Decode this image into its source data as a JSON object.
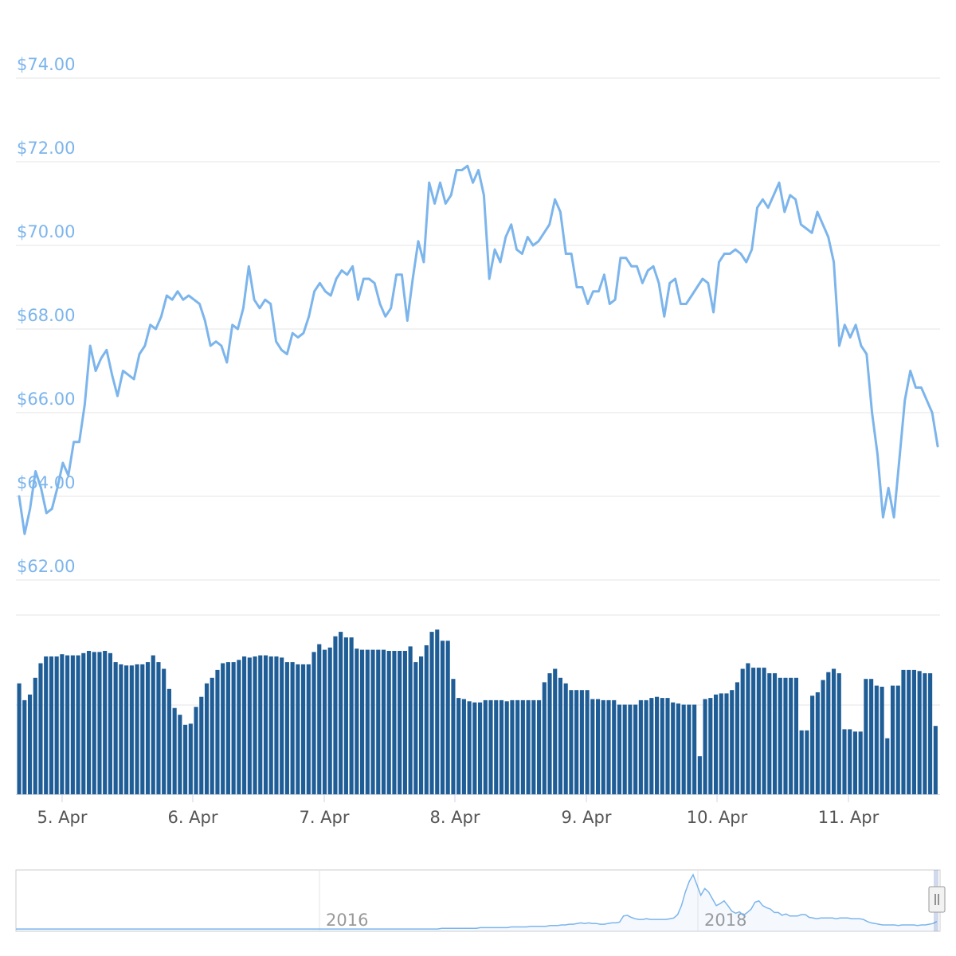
{
  "chart_data": {
    "type": "line",
    "price": {
      "y_ticks": [
        "$62.00",
        "$64.00",
        "$66.00",
        "$68.00",
        "$70.00",
        "$72.00",
        "$74.00"
      ],
      "y_tick_values": [
        62,
        64,
        66,
        68,
        70,
        72,
        74
      ],
      "ylim": [
        61.2,
        74.2
      ],
      "color": "#7cb5ec",
      "values": [
        64.0,
        63.1,
        63.7,
        64.6,
        64.2,
        63.6,
        63.7,
        64.2,
        64.8,
        64.5,
        65.3,
        65.3,
        66.2,
        67.6,
        67.0,
        67.3,
        67.5,
        66.9,
        66.4,
        67.0,
        66.9,
        66.8,
        67.4,
        67.6,
        68.1,
        68.0,
        68.3,
        68.8,
        68.7,
        68.9,
        68.7,
        68.8,
        68.7,
        68.6,
        68.2,
        67.6,
        67.7,
        67.6,
        67.2,
        68.1,
        68.0,
        68.5,
        69.5,
        68.7,
        68.5,
        68.7,
        68.6,
        67.7,
        67.5,
        67.4,
        67.9,
        67.8,
        67.9,
        68.3,
        68.9,
        69.1,
        68.9,
        68.8,
        69.2,
        69.4,
        69.3,
        69.5,
        68.7,
        69.2,
        69.2,
        69.1,
        68.6,
        68.3,
        68.5,
        69.3,
        69.3,
        68.2,
        69.2,
        70.1,
        69.6,
        71.5,
        71.0,
        71.5,
        71.0,
        71.2,
        71.8,
        71.8,
        71.9,
        71.5,
        71.8,
        71.2,
        69.2,
        69.9,
        69.6,
        70.2,
        70.5,
        69.9,
        69.8,
        70.2,
        70.0,
        70.1,
        70.3,
        70.5,
        71.1,
        70.8,
        69.8,
        69.8,
        69.0,
        69.0,
        68.6,
        68.9,
        68.9,
        69.3,
        68.6,
        68.7,
        69.7,
        69.7,
        69.5,
        69.5,
        69.1,
        69.4,
        69.5,
        69.1,
        68.3,
        69.1,
        69.2,
        68.6,
        68.6,
        68.8,
        69.0,
        69.2,
        69.1,
        68.4,
        69.6,
        69.8,
        69.8,
        69.9,
        69.8,
        69.6,
        69.9,
        70.9,
        71.1,
        70.9,
        71.2,
        71.5,
        70.8,
        71.2,
        71.1,
        70.5,
        70.4,
        70.3,
        70.8,
        70.5,
        70.2,
        69.6,
        67.6,
        68.1,
        67.8,
        68.1,
        67.6,
        67.4,
        66.0,
        65.0,
        63.5,
        64.2,
        63.5,
        64.9,
        66.3,
        67.0,
        66.6,
        66.6,
        66.3,
        66.0,
        65.2
      ]
    },
    "volume": {
      "color": "#1f5d96",
      "ylim": [
        0,
        160
      ],
      "values": [
        99,
        84,
        89,
        104,
        117,
        123,
        123,
        123,
        125,
        124,
        124,
        124,
        126,
        128,
        127,
        127,
        128,
        126,
        118,
        116,
        115,
        115,
        116,
        116,
        118,
        124,
        118,
        112,
        94,
        77,
        71,
        62,
        63,
        78,
        87,
        99,
        104,
        111,
        117,
        118,
        118,
        120,
        123,
        122,
        123,
        124,
        124,
        123,
        123,
        122,
        118,
        118,
        116,
        116,
        116,
        127,
        134,
        129,
        131,
        141,
        145,
        140,
        140,
        130,
        129,
        129,
        129,
        129,
        129,
        128,
        128,
        128,
        128,
        132,
        118,
        123,
        133,
        145,
        147,
        137,
        137,
        103,
        86,
        85,
        83,
        82,
        82,
        84,
        84,
        84,
        84,
        83,
        84,
        84,
        84,
        84,
        84,
        84,
        100,
        108,
        112,
        104,
        99,
        93,
        93,
        93,
        93,
        85,
        85,
        84,
        84,
        84,
        80,
        80,
        80,
        80,
        84,
        84,
        86,
        87,
        86,
        86,
        82,
        81,
        80,
        80,
        80,
        34,
        85,
        86,
        89,
        90,
        90,
        93,
        100,
        112,
        117,
        113,
        113,
        113,
        108,
        108,
        104,
        104,
        104,
        104,
        57,
        57,
        88,
        91,
        102,
        109,
        112,
        108,
        58,
        58,
        56,
        56,
        103,
        103,
        97,
        96,
        50,
        97,
        97,
        111,
        111,
        111,
        110,
        108,
        108,
        61
      ]
    },
    "x_ticks": [
      "5. Apr",
      "6. Apr",
      "7. Apr",
      "8. Apr",
      "9. Apr",
      "10. Apr",
      "11. Apr"
    ],
    "navigator": {
      "labels": [
        "2016",
        "2018"
      ],
      "series_color": "#7cb5ec",
      "values": [
        0.01,
        0.01,
        0.01,
        0.01,
        0.01,
        0.01,
        0.01,
        0.01,
        0.01,
        0.01,
        0.01,
        0.01,
        0.01,
        0.01,
        0.01,
        0.01,
        0.01,
        0.01,
        0.01,
        0.01,
        0.01,
        0.01,
        0.01,
        0.01,
        0.01,
        0.01,
        0.01,
        0.01,
        0.01,
        0.01,
        0.01,
        0.01,
        0.01,
        0.01,
        0.01,
        0.01,
        0.01,
        0.01,
        0.01,
        0.01,
        0.01,
        0.01,
        0.01,
        0.01,
        0.01,
        0.01,
        0.01,
        0.01,
        0.01,
        0.01,
        0.01,
        0.01,
        0.01,
        0.01,
        0.01,
        0.01,
        0.01,
        0.01,
        0.01,
        0.01,
        0.01,
        0.01,
        0.01,
        0.01,
        0.01,
        0.01,
        0.01,
        0.01,
        0.01,
        0.01,
        0.01,
        0.01,
        0.01,
        0.01,
        0.01,
        0.01,
        0.01,
        0.01,
        0.01,
        0.01,
        0.01,
        0.01,
        0.01,
        0.01,
        0.01,
        0.01,
        0.01,
        0.01,
        0.01,
        0.01,
        0.01,
        0.01,
        0.01,
        0.01,
        0.01,
        0.01,
        0.01,
        0.01,
        0.01,
        0.01,
        0.01,
        0.01,
        0.01,
        0.01,
        0.01,
        0.01,
        0.01,
        0.01,
        0.01,
        0.01,
        0.02,
        0.02,
        0.02,
        0.02,
        0.02,
        0.02,
        0.02,
        0.02,
        0.02,
        0.02,
        0.03,
        0.03,
        0.03,
        0.03,
        0.03,
        0.03,
        0.03,
        0.03,
        0.04,
        0.04,
        0.04,
        0.04,
        0.04,
        0.05,
        0.05,
        0.05,
        0.05,
        0.05,
        0.06,
        0.06,
        0.06,
        0.07,
        0.07,
        0.08,
        0.08,
        0.09,
        0.1,
        0.09,
        0.1,
        0.09,
        0.09,
        0.08,
        0.08,
        0.09,
        0.1,
        0.1,
        0.11,
        0.2,
        0.21,
        0.18,
        0.16,
        0.15,
        0.15,
        0.16,
        0.15,
        0.15,
        0.15,
        0.15,
        0.15,
        0.16,
        0.17,
        0.22,
        0.35,
        0.55,
        0.7,
        0.8,
        0.65,
        0.5,
        0.6,
        0.55,
        0.45,
        0.35,
        0.38,
        0.42,
        0.35,
        0.27,
        0.24,
        0.26,
        0.21,
        0.25,
        0.3,
        0.4,
        0.42,
        0.35,
        0.32,
        0.3,
        0.25,
        0.25,
        0.21,
        0.23,
        0.2,
        0.2,
        0.2,
        0.22,
        0.22,
        0.18,
        0.17,
        0.16,
        0.17,
        0.17,
        0.17,
        0.17,
        0.16,
        0.17,
        0.17,
        0.17,
        0.16,
        0.16,
        0.16,
        0.15,
        0.12,
        0.1,
        0.09,
        0.08,
        0.07,
        0.07,
        0.07,
        0.07,
        0.06,
        0.07,
        0.07,
        0.07,
        0.07,
        0.06,
        0.07,
        0.07,
        0.08,
        0.09,
        0.12
      ]
    }
  }
}
